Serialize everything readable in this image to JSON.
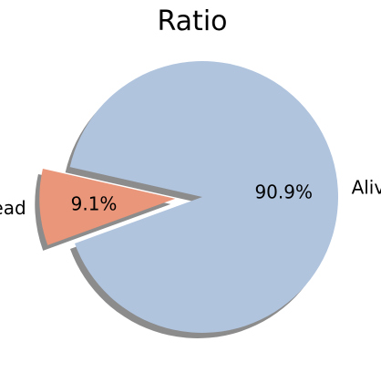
{
  "chart_data": {
    "type": "pie",
    "title": "Ratio",
    "slices": [
      {
        "label": "Alive",
        "value": 90.9,
        "pct_label": "90.9%",
        "color": "#b0c4de",
        "exploded": false
      },
      {
        "label": "Dead",
        "value": 9.1,
        "pct_label": "9.1%",
        "color": "#e9967a",
        "exploded": true
      }
    ],
    "shadow": true,
    "start_angle_deg": 200
  }
}
